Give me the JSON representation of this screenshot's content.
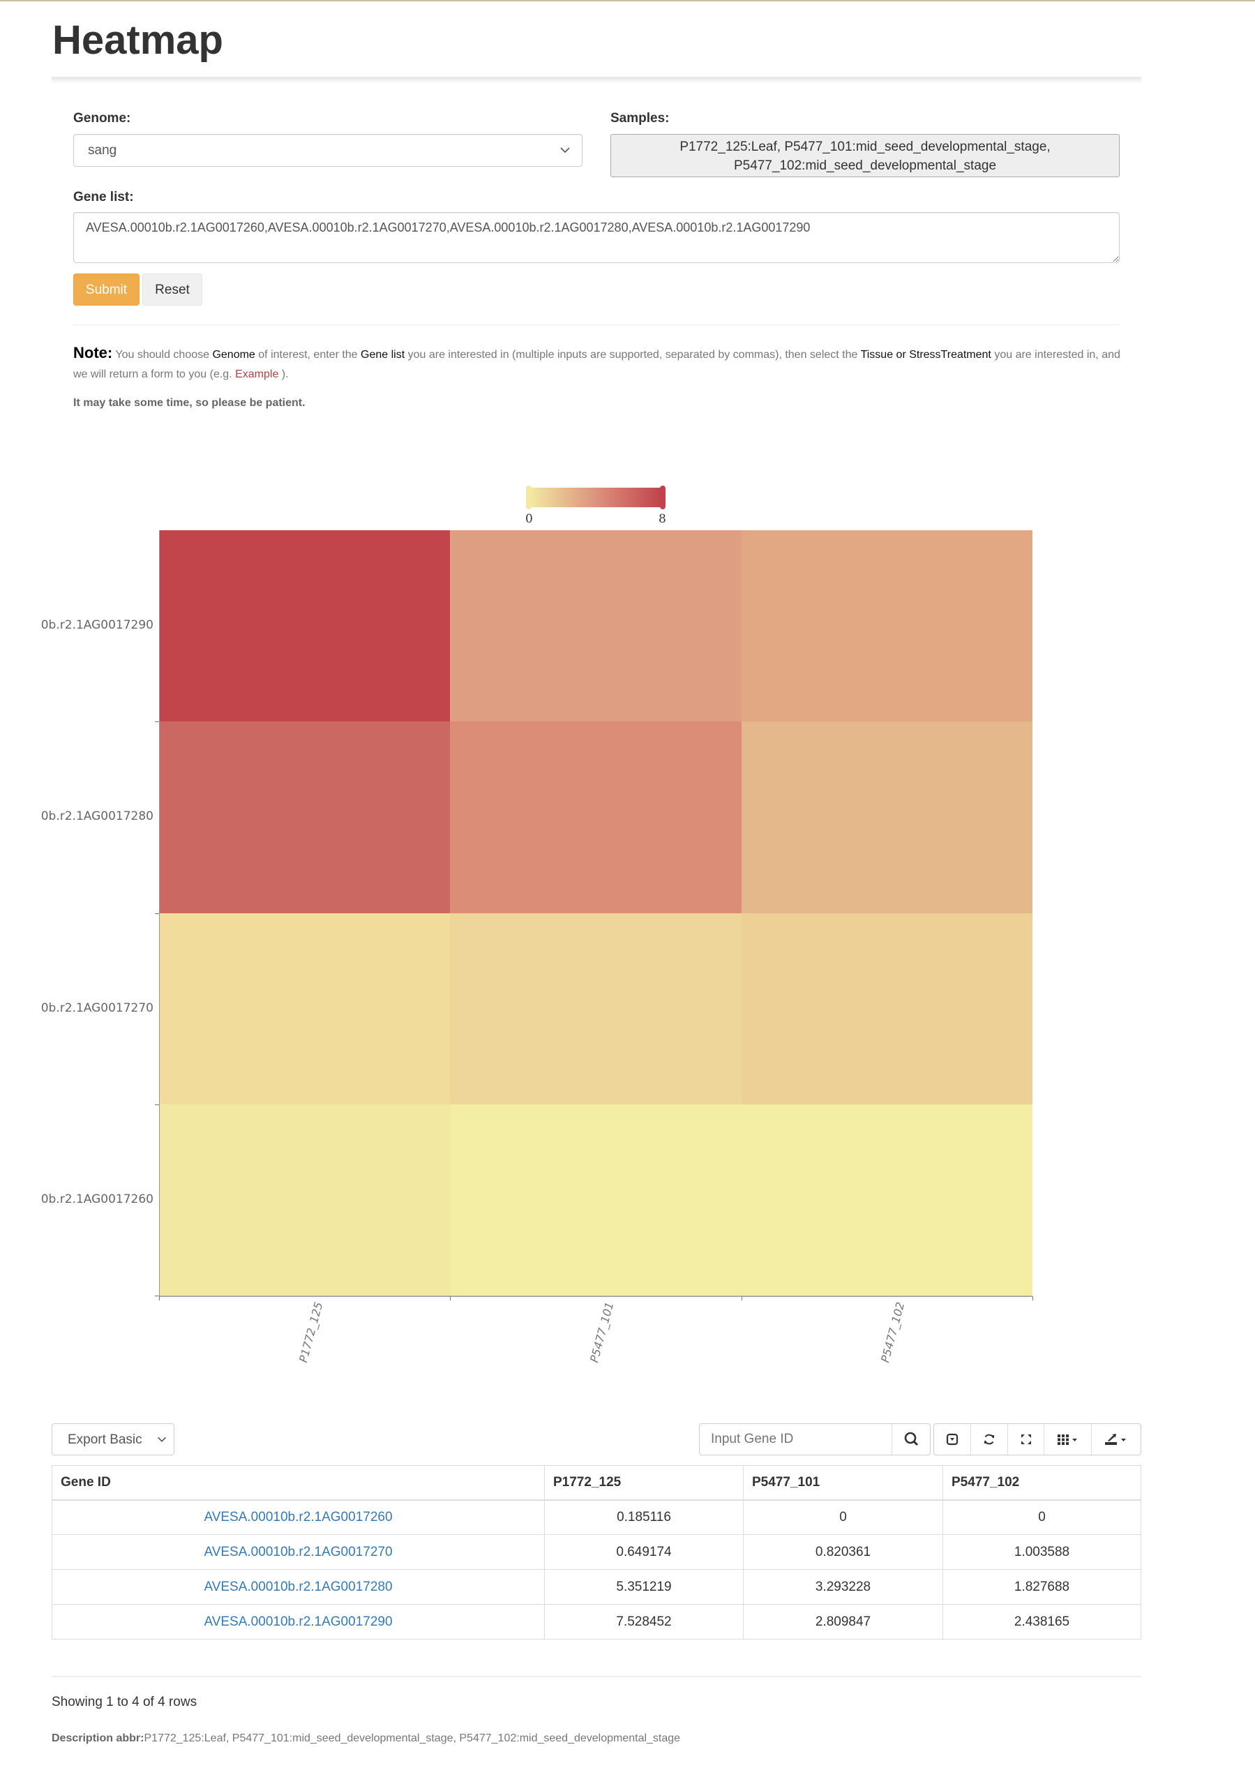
{
  "page": {
    "title": "Heatmap"
  },
  "form": {
    "genome_label": "Genome:",
    "genome_value": "sang",
    "samples_label": "Samples:",
    "samples_line1": "P1772_125:Leaf, P5477_101:mid_seed_developmental_stage,",
    "samples_line2": "P5477_102:mid_seed_developmental_stage",
    "gene_list_label": "Gene list:",
    "gene_list_value": "AVESA.00010b.r2.1AG0017260,AVESA.00010b.r2.1AG0017270,AVESA.00010b.r2.1AG0017280,AVESA.00010b.r2.1AG0017290",
    "submit_label": "Submit",
    "reset_label": "Reset"
  },
  "note": {
    "heading": "Note:",
    "t1": " You should choose ",
    "genome": "Genome",
    "t2": " of interest, enter the ",
    "gene_list": "Gene list",
    "t3": " you are interested in (multiple inputs are supported, separated by commas), then select the ",
    "tissue": "Tissue or StressTreatment",
    "t4": " you are interested in, and we will return a form to you (e.g. ",
    "example_link": "Example",
    "t5": " ).",
    "patience": "It may take some time, so please be patient."
  },
  "colors": {
    "low": "#f5efa4",
    "high": "#c1434b",
    "submit": "#f0ad4e",
    "link": "#337ab7"
  },
  "chart_data": {
    "type": "heatmap",
    "title": "",
    "x_categories": [
      "P1772_125",
      "P5477_101",
      "P5477_102"
    ],
    "y_categories": [
      "0b.r2.1AG0017290",
      "0b.r2.1AG0017280",
      "0b.r2.1AG0017270",
      "0b.r2.1AG0017260"
    ],
    "values": [
      [
        7.528452,
        2.809847,
        2.438165
      ],
      [
        5.351219,
        3.293228,
        1.827688
      ],
      [
        0.649174,
        0.820361,
        1.003588
      ],
      [
        0.185116,
        0,
        0
      ]
    ],
    "cell_colors": [
      [
        "#c1454b",
        "#de9e82",
        "#e2a884"
      ],
      [
        "#cc6862",
        "#db8d78",
        "#e5b88c"
      ],
      [
        "#f1dc9c",
        "#eed69b",
        "#edd096"
      ],
      [
        "#f2e8a2",
        "#f4eea5",
        "#f4eea5"
      ]
    ],
    "colorscale": {
      "min": 0,
      "max": 8,
      "min_label": "0",
      "max_label": "8",
      "from": "#f5efa4",
      "mid": "#e2a07f",
      "to": "#c1434b"
    },
    "legend_position": "top-center",
    "grid": false
  },
  "toolbar": {
    "export_label": "Export Basic",
    "search_placeholder": "Input Gene ID",
    "icons": [
      "search-icon",
      "toggle-view-icon",
      "refresh-icon",
      "fullscreen-icon",
      "columns-icon",
      "export-icon"
    ]
  },
  "table": {
    "headers": [
      "Gene ID",
      "P1772_125",
      "P5477_101",
      "P5477_102"
    ],
    "rows": [
      [
        "AVESA.00010b.r2.1AG0017260",
        "0.185116",
        "0",
        "0"
      ],
      [
        "AVESA.00010b.r2.1AG0017270",
        "0.649174",
        "0.820361",
        "1.003588"
      ],
      [
        "AVESA.00010b.r2.1AG0017280",
        "5.351219",
        "3.293228",
        "1.827688"
      ],
      [
        "AVESA.00010b.r2.1AG0017290",
        "7.528452",
        "2.809847",
        "2.438165"
      ]
    ]
  },
  "footer": {
    "showing": "Showing 1 to 4 of 4 rows",
    "desc_label": "Description abbr:",
    "desc_value": "P1772_125:Leaf, P5477_101:mid_seed_developmental_stage, P5477_102:mid_seed_developmental_stage"
  }
}
